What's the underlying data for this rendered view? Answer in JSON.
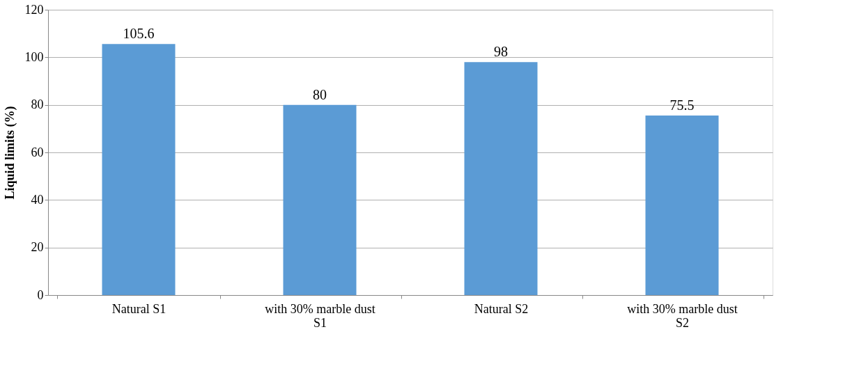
{
  "chart_data": {
    "type": "bar",
    "ylabel": "Liquid limits (%)",
    "categories": [
      "Natural S1",
      "with 30% marble dust S1",
      "Natural S2",
      "with 30% marble dust S2"
    ],
    "values": [
      105.6,
      80,
      98,
      75.5
    ],
    "color": "#5b9bd5",
    "ylim": [
      0,
      120
    ],
    "yticks": [
      0,
      20,
      40,
      60,
      80,
      100,
      120
    ],
    "grid": "y",
    "data_labels": true
  }
}
